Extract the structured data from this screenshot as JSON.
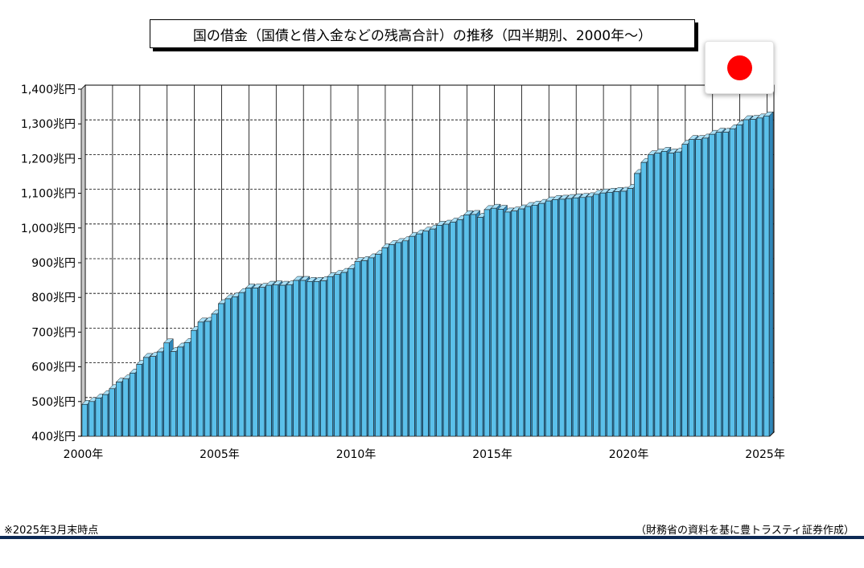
{
  "title": "国の借金（国債と借入金などの残高合計）の推移（四半期別、2000年～）",
  "footnote": "※2025年3月末時点",
  "source": "（財務省の資料を基に豊トラスティ証券作成）",
  "colors": {
    "bar": "#5bc0ea",
    "bar_top": "#a9e0f7",
    "bar_side": "#2f86b8",
    "flag": "#ff0000",
    "rule": "#0d2a55"
  },
  "icons": {
    "flag": "japan-flag-icon"
  },
  "chart_data": {
    "type": "bar",
    "unit": "兆円",
    "ylim": [
      400,
      1400
    ],
    "yticks": [
      "400兆円",
      "500兆円",
      "600兆円",
      "700兆円",
      "800兆円",
      "900兆円",
      "1,000兆円",
      "1,100兆円",
      "1,200兆円",
      "1,300兆円",
      "1,400兆円"
    ],
    "xticks": [
      "2000年",
      "2005年",
      "2010年",
      "2015年",
      "2020年",
      "2025年"
    ],
    "grid": true,
    "frequency": "quarterly",
    "start": "2000年",
    "values": [
      492,
      500,
      510,
      520,
      537,
      556,
      565,
      582,
      607,
      627,
      630,
      643,
      669,
      644,
      657,
      670,
      705,
      729,
      731,
      752,
      782,
      796,
      802,
      814,
      827,
      827,
      829,
      835,
      836,
      835,
      836,
      849,
      849,
      846,
      846,
      848,
      860,
      866,
      872,
      883,
      903,
      906,
      914,
      924,
      943,
      952,
      958,
      963,
      976,
      983,
      991,
      997,
      1008,
      1011,
      1017,
      1024,
      1038,
      1039,
      1031,
      1053,
      1057,
      1054,
      1046,
      1049,
      1055,
      1062,
      1066,
      1071,
      1078,
      1082,
      1083,
      1085,
      1087,
      1088,
      1090,
      1097,
      1101,
      1103,
      1105,
      1106,
      1114,
      1157,
      1189,
      1211,
      1216,
      1221,
      1216,
      1219,
      1241,
      1255,
      1255,
      1259,
      1270,
      1276,
      1276,
      1286,
      1297,
      1312,
      1313,
      1317,
      1323
    ]
  }
}
